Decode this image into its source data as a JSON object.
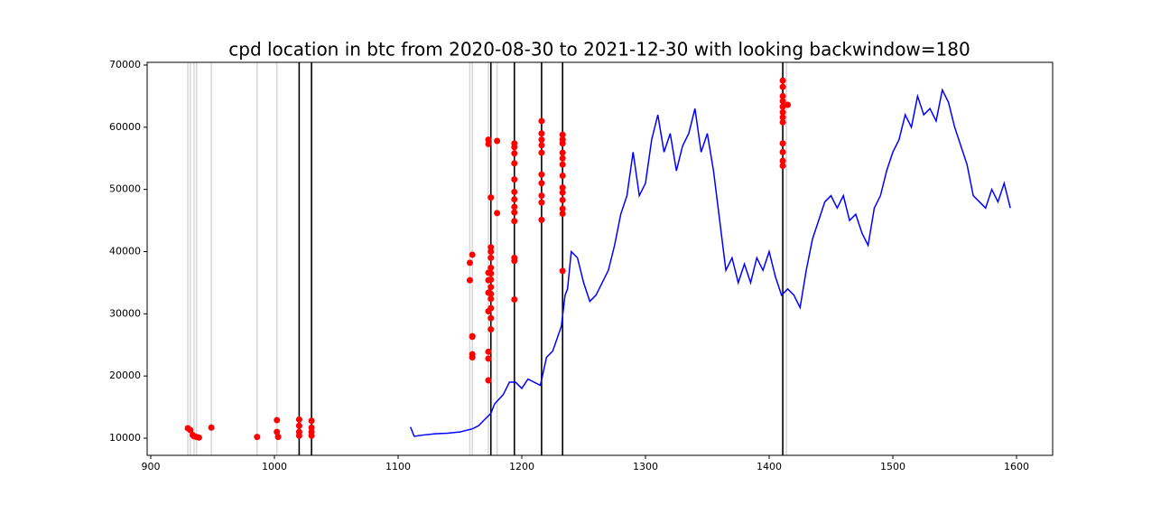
{
  "chart_data": {
    "type": "line",
    "title": "cpd location in btc from 2020-08-30 to 2021-12-30 with looking backwindow=180",
    "xlim": [
      897.1,
      1629.2
    ],
    "ylim": [
      7240,
      70436
    ],
    "xticks": [
      900,
      1000,
      1100,
      1200,
      1300,
      1400,
      1500,
      1600
    ],
    "yticks": [
      10000,
      20000,
      30000,
      40000,
      50000,
      60000,
      70000
    ],
    "vline_groups": [
      {
        "color": "#d9d9d9",
        "x": [
          930,
          932,
          935,
          937,
          949,
          986,
          1002,
          1158,
          1160,
          1173,
          1180,
          1414
        ]
      },
      {
        "color": "#000000",
        "x": [
          1020,
          1030,
          1175,
          1194,
          1216,
          1233,
          1411
        ]
      }
    ],
    "series": [
      {
        "type": "line",
        "color": "#0000ff",
        "x": [
          1110,
          1113,
          1120,
          1130,
          1140,
          1150,
          1160,
          1165,
          1170,
          1175,
          1178,
          1185,
          1190,
          1195,
          1200,
          1205,
          1215,
          1220,
          1225,
          1232,
          1235,
          1237,
          1240,
          1245,
          1250,
          1255,
          1260,
          1265,
          1270,
          1275,
          1280,
          1285,
          1290,
          1295,
          1300,
          1305,
          1310,
          1315,
          1320,
          1325,
          1330,
          1335,
          1340,
          1345,
          1350,
          1355,
          1360,
          1365,
          1370,
          1375,
          1380,
          1385,
          1390,
          1395,
          1400,
          1405,
          1410,
          1415,
          1420,
          1425,
          1430,
          1435,
          1440,
          1445,
          1450,
          1455,
          1460,
          1465,
          1470,
          1475,
          1480,
          1485,
          1490,
          1495,
          1500,
          1505,
          1510,
          1515,
          1520,
          1525,
          1530,
          1535,
          1540,
          1545,
          1550,
          1555,
          1560,
          1565,
          1570,
          1575,
          1580,
          1585,
          1590,
          1595
        ],
        "values": [
          11800,
          10300,
          10500,
          10700,
          10800,
          11000,
          11500,
          12000,
          13000,
          14000,
          15500,
          17000,
          19000,
          19000,
          18000,
          19500,
          18500,
          23000,
          24000,
          28000,
          33000,
          34000,
          40000,
          39000,
          35000,
          32000,
          33000,
          35000,
          37000,
          41000,
          46000,
          49000,
          56000,
          49000,
          51000,
          58000,
          62000,
          56000,
          59000,
          53000,
          57000,
          59000,
          63000,
          56000,
          59000,
          53000,
          45000,
          37000,
          39000,
          35000,
          38000,
          35000,
          39000,
          37000,
          40000,
          36000,
          33000,
          34000,
          33000,
          31000,
          37000,
          42000,
          45000,
          48000,
          49000,
          47000,
          49000,
          45000,
          46000,
          43000,
          41000,
          47000,
          49000,
          53000,
          56000,
          58000,
          62000,
          60000,
          65000,
          62000,
          63000,
          61000,
          66000,
          64000,
          60000,
          57000,
          54000,
          49000,
          48000,
          47000,
          50000,
          48000,
          51000,
          47000
        ]
      },
      {
        "type": "scatter",
        "color": "#ff0000",
        "x": [
          930,
          932,
          934,
          935,
          937,
          939,
          949,
          986,
          1002,
          1002,
          1003,
          1020,
          1020,
          1020,
          1020,
          1030,
          1030,
          1030,
          1030,
          1158,
          1158,
          1160,
          1160,
          1160,
          1160,
          1160,
          1173,
          1173,
          1173,
          1173,
          1173,
          1173,
          1173,
          1173,
          1173,
          1175,
          1175,
          1175,
          1175,
          1175,
          1175,
          1175,
          1175,
          1175,
          1175,
          1175,
          1175,
          1175,
          1180,
          1180,
          1194,
          1194,
          1194,
          1194,
          1194,
          1194,
          1194,
          1194,
          1194,
          1194,
          1194,
          1194,
          1194,
          1216,
          1216,
          1216,
          1216,
          1216,
          1216,
          1216,
          1216,
          1216,
          1216,
          1233,
          1233,
          1233,
          1233,
          1233,
          1233,
          1233,
          1233,
          1233,
          1233,
          1233,
          1233,
          1233,
          1411,
          1411,
          1411,
          1411,
          1411,
          1411,
          1411,
          1411,
          1411,
          1411,
          1411,
          1411,
          1415
        ],
        "values": [
          11600,
          11300,
          10500,
          10300,
          10200,
          10100,
          11700,
          10200,
          12900,
          11000,
          10200,
          13000,
          12000,
          11000,
          10400,
          12800,
          11700,
          11000,
          10400,
          38200,
          35400,
          39500,
          26400,
          26300,
          23500,
          23000,
          58000,
          57300,
          36600,
          35400,
          33400,
          30400,
          23900,
          22800,
          19300,
          48700,
          40700,
          40000,
          39000,
          37400,
          36500,
          35500,
          34300,
          33200,
          32400,
          30900,
          29300,
          27500,
          57800,
          46200,
          57400,
          56800,
          55800,
          54200,
          51600,
          49600,
          48400,
          47200,
          46300,
          44900,
          39000,
          38500,
          32300,
          61000,
          59000,
          58000,
          57100,
          55900,
          52400,
          51000,
          49000,
          47900,
          45100,
          58800,
          58000,
          57400,
          55900,
          55000,
          54000,
          52200,
          50300,
          49500,
          48300,
          46900,
          46100,
          36900,
          67500,
          66500,
          65000,
          64200,
          63300,
          62400,
          61600,
          60800,
          57400,
          56000,
          54600,
          53800,
          63600
        ]
      }
    ]
  }
}
